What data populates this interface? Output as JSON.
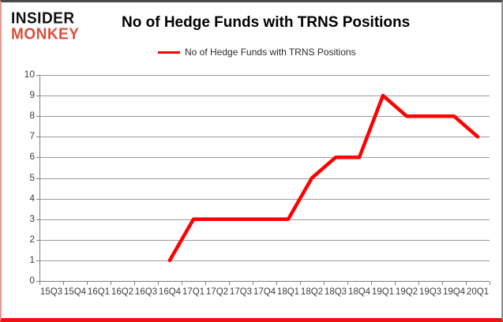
{
  "logo": {
    "line1": "INSIDER",
    "line2": "MONKEY"
  },
  "header": {
    "title": "No of Hedge Funds with TRNS Positions"
  },
  "legend": {
    "label": "No of Hedge Funds with TRNS Positions"
  },
  "colors": {
    "line": "#fe0000",
    "logo_black": "#111111",
    "logo_red": "#d94f3d",
    "grid": "#9a9a9a",
    "axis_text": "#3d3d3d"
  },
  "chart_data": {
    "type": "line",
    "title": "No of Hedge Funds with TRNS Positions",
    "categories": [
      "15Q3",
      "15Q4",
      "16Q1",
      "16Q2",
      "16Q3",
      "16Q4",
      "17Q1",
      "17Q2",
      "17Q3",
      "17Q4",
      "18Q1",
      "18Q2",
      "18Q3",
      "18Q4",
      "19Q1",
      "19Q2",
      "19Q3",
      "19Q4",
      "20Q1"
    ],
    "series": [
      {
        "name": "No of Hedge Funds with TRNS Positions",
        "values": [
          null,
          null,
          null,
          null,
          null,
          1,
          3,
          3,
          3,
          3,
          3,
          5,
          6,
          6,
          9,
          8,
          8,
          8,
          7
        ]
      }
    ],
    "xlabel": "",
    "ylabel": "",
    "ylim": [
      0,
      10
    ],
    "ytick_step": 1,
    "yticks": [
      0,
      1,
      2,
      3,
      4,
      5,
      6,
      7,
      8,
      9,
      10
    ],
    "grid": true,
    "legend_position": "top-center"
  }
}
